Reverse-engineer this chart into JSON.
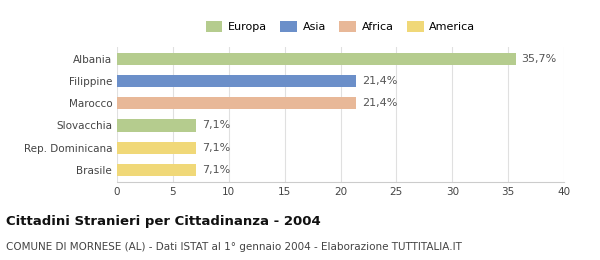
{
  "categories": [
    "Albania",
    "Filippine",
    "Marocco",
    "Slovacchia",
    "Rep. Dominicana",
    "Brasile"
  ],
  "values": [
    35.7,
    21.4,
    21.4,
    7.1,
    7.1,
    7.1
  ],
  "labels": [
    "35,7%",
    "21,4%",
    "21,4%",
    "7,1%",
    "7,1%",
    "7,1%"
  ],
  "bar_colors": [
    "#b5cc8e",
    "#6b8fc9",
    "#e8b898",
    "#b5cc8e",
    "#f0d878",
    "#f0d878"
  ],
  "legend_labels": [
    "Europa",
    "Asia",
    "Africa",
    "America"
  ],
  "legend_colors": [
    "#b5cc8e",
    "#6b8fc9",
    "#e8b898",
    "#f0d878"
  ],
  "xlim": [
    0,
    40
  ],
  "xticks": [
    0,
    5,
    10,
    15,
    20,
    25,
    30,
    35,
    40
  ],
  "title": "Cittadini Stranieri per Cittadinanza - 2004",
  "subtitle": "COMUNE DI MORNESE (AL) - Dati ISTAT al 1° gennaio 2004 - Elaborazione TUTTITALIA.IT",
  "background_color": "#ffffff",
  "plot_bg_color": "#ffffff",
  "grid_color": "#e0e0e0",
  "title_fontsize": 9.5,
  "subtitle_fontsize": 7.5,
  "bar_height": 0.55,
  "label_fontsize": 8,
  "tick_fontsize": 7.5
}
